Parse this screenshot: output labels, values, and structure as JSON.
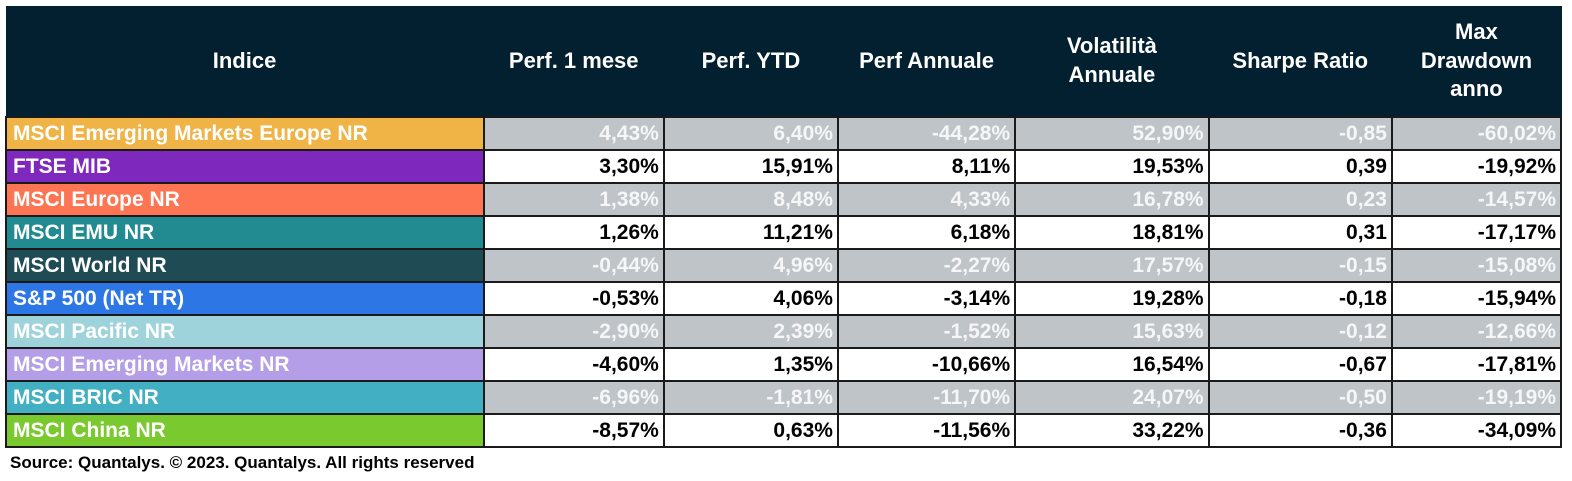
{
  "chart_data": {
    "type": "table",
    "columns": [
      "Indice",
      "Perf. 1 mese",
      "Perf. YTD",
      "Perf Annuale",
      "Volatilità Annuale",
      "Sharpe Ratio",
      "Max Drawdown anno"
    ],
    "rows": [
      {
        "name": "MSCI Emerging Markets Europe NR",
        "color": "#efb346",
        "values": [
          "4,43%",
          "6,40%",
          "-44,28%",
          "52,90%",
          "-0,85",
          "-60,02%"
        ]
      },
      {
        "name": "FTSE MIB",
        "color": "#7e28bd",
        "values": [
          "3,30%",
          "15,91%",
          "8,11%",
          "19,53%",
          "0,39",
          "-19,92%"
        ]
      },
      {
        "name": "MSCI Europe NR",
        "color": "#fd7552",
        "values": [
          "1,38%",
          "8,48%",
          "4,33%",
          "16,78%",
          "0,23",
          "-14,57%"
        ]
      },
      {
        "name": "MSCI EMU NR",
        "color": "#228a91",
        "values": [
          "1,26%",
          "11,21%",
          "6,18%",
          "18,81%",
          "0,31",
          "-17,17%"
        ]
      },
      {
        "name": "MSCI World NR",
        "color": "#1f4b55",
        "values": [
          "-0,44%",
          "4,96%",
          "-2,27%",
          "17,57%",
          "-0,15",
          "-15,08%"
        ]
      },
      {
        "name": "S&P 500 (Net TR)",
        "color": "#2c76e5",
        "values": [
          "-0,53%",
          "4,06%",
          "-3,14%",
          "19,28%",
          "-0,18",
          "-15,94%"
        ]
      },
      {
        "name": "MSCI Pacific NR",
        "color": "#9fd3dc",
        "values": [
          "-2,90%",
          "2,39%",
          "-1,52%",
          "15,63%",
          "-0,12",
          "-12,66%"
        ]
      },
      {
        "name": "MSCI Emerging Markets NR",
        "color": "#b49ee8",
        "values": [
          "-4,60%",
          "1,35%",
          "-10,66%",
          "16,54%",
          "-0,67",
          "-17,81%"
        ]
      },
      {
        "name": "MSCI BRIC NR",
        "color": "#42b0c2",
        "values": [
          "-6,96%",
          "-1,81%",
          "-11,70%",
          "24,07%",
          "-0,50",
          "-19,19%"
        ]
      },
      {
        "name": "MSCI China NR",
        "color": "#7ac92e",
        "values": [
          "-8,57%",
          "0,63%",
          "-11,56%",
          "33,22%",
          "-0,36",
          "-34,09%"
        ]
      }
    ]
  },
  "source": "Source: Quantalys. © 2023. Quantalys. All rights reserved",
  "colors": {
    "header_bg": "#02202f",
    "shaded_row_bg": "#bfc4c9"
  }
}
